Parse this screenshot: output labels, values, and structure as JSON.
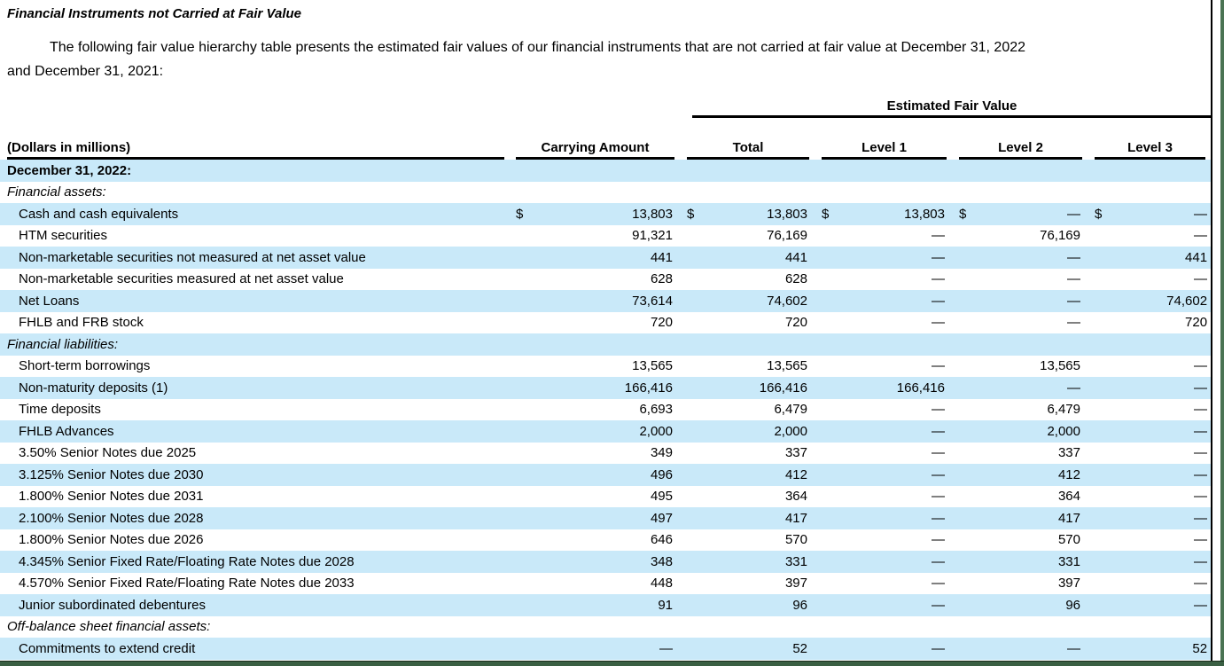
{
  "doc": {
    "title": "Financial Instruments not Carried at Fair Value",
    "intro_line1": "The following fair value hierarchy table presents the estimated fair values of our financial instruments that are not carried at fair value at December 31, 2022",
    "intro_line2": "and December 31, 2021:"
  },
  "table": {
    "group_header": "Estimated Fair Value",
    "columns": [
      "(Dollars in millions)",
      "Carrying Amount",
      "Total",
      "Level 1",
      "Level 2",
      "Level 3"
    ],
    "currency_symbol": "$",
    "rows": [
      {
        "type": "date",
        "bg": "blue",
        "label": "December 31, 2022:"
      },
      {
        "type": "section",
        "bg": "white",
        "label": "Financial assets:"
      },
      {
        "type": "item",
        "bg": "blue",
        "label": "Cash and cash equivalents",
        "dollar": true,
        "values": [
          "13,803",
          "13,803",
          "13,803",
          "—",
          "—"
        ]
      },
      {
        "type": "item",
        "bg": "white",
        "label": "HTM securities",
        "values": [
          "91,321",
          "76,169",
          "—",
          "76,169",
          "—"
        ]
      },
      {
        "type": "item",
        "bg": "blue",
        "label": "Non-marketable securities not measured at net asset value",
        "values": [
          "441",
          "441",
          "—",
          "—",
          "441"
        ]
      },
      {
        "type": "item",
        "bg": "white",
        "label": "Non-marketable securities measured at net asset value",
        "values": [
          "628",
          "628",
          "—",
          "—",
          "—"
        ]
      },
      {
        "type": "item",
        "bg": "blue",
        "label": "Net Loans",
        "values": [
          "73,614",
          "74,602",
          "—",
          "—",
          "74,602"
        ]
      },
      {
        "type": "item",
        "bg": "white",
        "label": "FHLB and FRB stock",
        "values": [
          "720",
          "720",
          "—",
          "—",
          "720"
        ]
      },
      {
        "type": "section",
        "bg": "blue",
        "label": "Financial liabilities:"
      },
      {
        "type": "item",
        "bg": "white",
        "label": "Short-term borrowings",
        "values": [
          "13,565",
          "13,565",
          "—",
          "13,565",
          "—"
        ]
      },
      {
        "type": "item",
        "bg": "blue",
        "label": "Non-maturity deposits (1)",
        "values": [
          "166,416",
          "166,416",
          "166,416",
          "—",
          "—"
        ]
      },
      {
        "type": "item",
        "bg": "white",
        "label": "Time deposits",
        "values": [
          "6,693",
          "6,479",
          "—",
          "6,479",
          "—"
        ]
      },
      {
        "type": "item",
        "bg": "blue",
        "label": "FHLB Advances",
        "values": [
          "2,000",
          "2,000",
          "—",
          "2,000",
          "—"
        ]
      },
      {
        "type": "item",
        "bg": "white",
        "label": "3.50% Senior Notes due 2025",
        "values": [
          "349",
          "337",
          "—",
          "337",
          "—"
        ]
      },
      {
        "type": "item",
        "bg": "blue",
        "label": "3.125% Senior Notes due 2030",
        "values": [
          "496",
          "412",
          "—",
          "412",
          "—"
        ]
      },
      {
        "type": "item",
        "bg": "white",
        "label": "1.800% Senior Notes due 2031",
        "values": [
          "495",
          "364",
          "—",
          "364",
          "—"
        ]
      },
      {
        "type": "item",
        "bg": "blue",
        "label": "2.100% Senior Notes due 2028",
        "values": [
          "497",
          "417",
          "—",
          "417",
          "—"
        ]
      },
      {
        "type": "item",
        "bg": "white",
        "label": "1.800% Senior Notes due 2026",
        "values": [
          "646",
          "570",
          "—",
          "570",
          "—"
        ]
      },
      {
        "type": "item",
        "bg": "blue",
        "label": "4.345% Senior Fixed Rate/Floating Rate Notes due 2028",
        "values": [
          "348",
          "331",
          "—",
          "331",
          "—"
        ]
      },
      {
        "type": "item",
        "bg": "white",
        "label": "4.570% Senior Fixed Rate/Floating Rate Notes due 2033",
        "values": [
          "448",
          "397",
          "—",
          "397",
          "—"
        ]
      },
      {
        "type": "item",
        "bg": "blue",
        "label": "Junior subordinated debentures",
        "values": [
          "91",
          "96",
          "—",
          "96",
          "—"
        ]
      },
      {
        "type": "section",
        "bg": "white",
        "label": "Off-balance sheet financial assets:"
      },
      {
        "type": "item",
        "bg": "blue",
        "label": "Commitments to extend credit",
        "values": [
          "—",
          "52",
          "—",
          "—",
          "52"
        ]
      }
    ]
  },
  "colors": {
    "row_highlight": "#c9e9f9",
    "edge_green": "#4a7453",
    "edge_green_dark": "#3a5f43",
    "rule_black": "#000000"
  }
}
